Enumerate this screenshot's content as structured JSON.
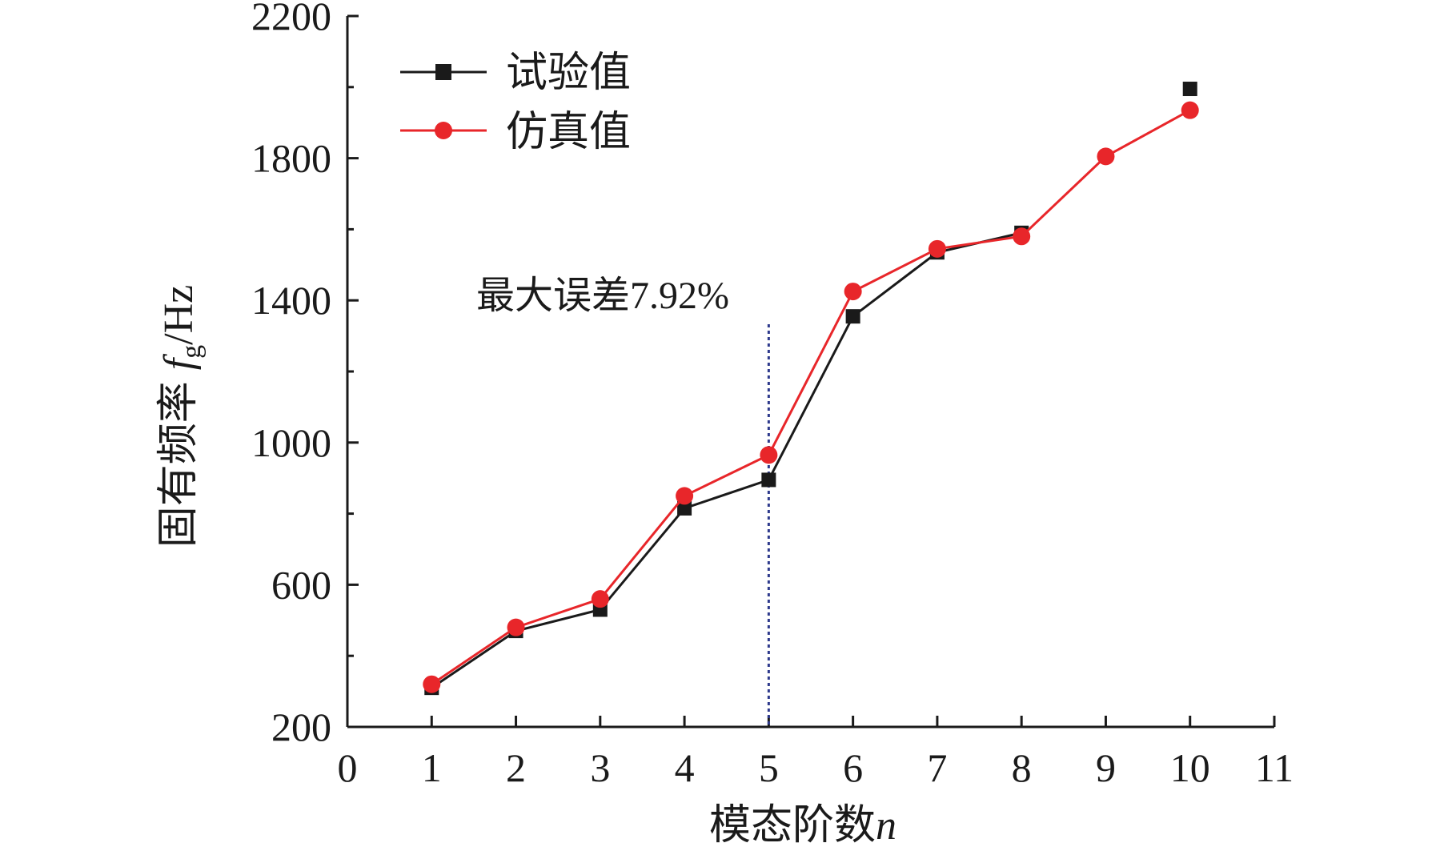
{
  "chart_data": {
    "type": "line",
    "xlabel": "模态阶数",
    "xlabel_var": "n",
    "ylabel": "固有频率",
    "ylabel_var": "f",
    "ylabel_sub": "g",
    "ylabel_unit": "/Hz",
    "xlim": [
      0,
      11
    ],
    "ylim": [
      200,
      2200
    ],
    "x_ticks": [
      0,
      1,
      2,
      3,
      4,
      5,
      6,
      7,
      8,
      9,
      10,
      11
    ],
    "y_ticks": [
      200,
      600,
      1000,
      1400,
      1800,
      2200
    ],
    "grid": false,
    "legend_position": "top-left",
    "series": [
      {
        "name": "试验值",
        "color": "#1a1a1a",
        "marker": "square",
        "x": [
          1,
          2,
          3,
          4,
          5,
          6,
          7,
          8,
          10
        ],
        "y": [
          310,
          470,
          530,
          815,
          895,
          1355,
          1535,
          1590,
          1995
        ],
        "line_x": [
          1,
          2,
          3,
          4,
          5,
          6,
          7,
          8
        ]
      },
      {
        "name": "仿真值",
        "color": "#e8262a",
        "marker": "circle",
        "x": [
          1,
          2,
          3,
          4,
          5,
          6,
          7,
          8,
          9,
          10
        ],
        "y": [
          320,
          480,
          560,
          850,
          965,
          1425,
          1545,
          1580,
          1805,
          1935
        ],
        "line_x": [
          1,
          2,
          3,
          4,
          5,
          6,
          7,
          8,
          9,
          10
        ]
      }
    ],
    "annotation": {
      "text": "最大误差7.92%",
      "x": 5,
      "line_color": "#2e3a8c"
    }
  }
}
